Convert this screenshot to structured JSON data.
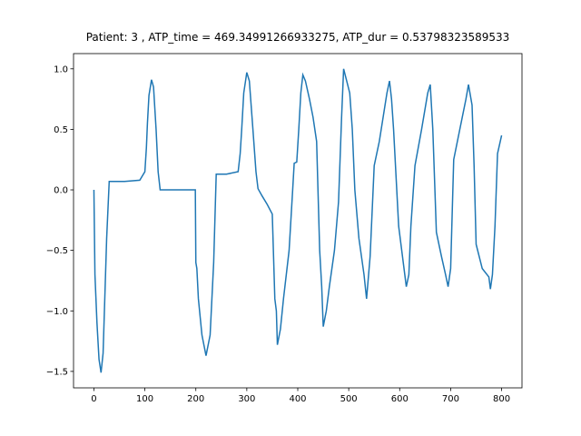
{
  "chart_data": {
    "type": "line",
    "title": "Patient: 3 , ATP_time = 469.34991266933275, ATP_dur = 0.53798323589533",
    "xlim": [
      -40,
      840
    ],
    "ylim": [
      -1.636,
      1.126
    ],
    "xticks": [
      0,
      100,
      200,
      300,
      400,
      500,
      600,
      700,
      800
    ],
    "yticks": [
      {
        "value": -1.5,
        "label": "−1.5"
      },
      {
        "value": -1.0,
        "label": "−1.0"
      },
      {
        "value": -0.5,
        "label": "−0.5"
      },
      {
        "value": 0,
        "label": "0.0"
      },
      {
        "value": 0.5,
        "label": "0.5"
      },
      {
        "value": 1.0,
        "label": "1.0"
      }
    ],
    "grid": false,
    "series": [
      {
        "color": "#1f77b4",
        "x": [
          0,
          2,
          6,
          10,
          14,
          18,
          25,
          30,
          60,
          90,
          100,
          103,
          105,
          108,
          113,
          117,
          122,
          126,
          130,
          160,
          199,
          200,
          202,
          205,
          212,
          220,
          228,
          235,
          240,
          260,
          283,
          287,
          290,
          294,
          300,
          305,
          312,
          318,
          322,
          330,
          340,
          350,
          355,
          358,
          360,
          366,
          372,
          383,
          390,
          393,
          398,
          402,
          406,
          410,
          415,
          423,
          430,
          437,
          443,
          447,
          450,
          456,
          462,
          472,
          480,
          486,
          490,
          496,
          502,
          507,
          512,
          520,
          530,
          535,
          538,
          542,
          550,
          560,
          575,
          580,
          584,
          588,
          598,
          607,
          613,
          618,
          622,
          630,
          643,
          655,
          660,
          665,
          672,
          682,
          690,
          695,
          700,
          706,
          718,
          730,
          735,
          742,
          746,
          750,
          762,
          775,
          778,
          782,
          787,
          792,
          800
        ],
        "values": [
          0,
          -0.7,
          -1.1,
          -1.4,
          -1.51,
          -1.35,
          -0.4,
          0.07,
          0.07,
          0.08,
          0.15,
          0.35,
          0.55,
          0.78,
          0.91,
          0.85,
          0.5,
          0.15,
          0.0,
          0.0,
          0.0,
          -0.6,
          -0.65,
          -0.9,
          -1.2,
          -1.37,
          -1.2,
          -0.6,
          0.13,
          0.13,
          0.15,
          0.3,
          0.5,
          0.8,
          0.97,
          0.9,
          0.5,
          0.15,
          0.01,
          -0.05,
          -0.12,
          -0.2,
          -0.9,
          -1.0,
          -1.28,
          -1.15,
          -0.9,
          -0.5,
          0.0,
          0.22,
          0.23,
          0.5,
          0.8,
          0.95,
          0.9,
          0.75,
          0.6,
          0.4,
          -0.5,
          -0.8,
          -1.13,
          -1.0,
          -0.8,
          -0.5,
          -0.1,
          0.6,
          1.0,
          0.9,
          0.8,
          0.5,
          0.0,
          -0.4,
          -0.7,
          -0.9,
          -0.75,
          -0.55,
          0.2,
          0.4,
          0.8,
          0.9,
          0.75,
          0.5,
          -0.3,
          -0.6,
          -0.8,
          -0.7,
          -0.3,
          0.2,
          0.5,
          0.8,
          0.87,
          0.5,
          -0.35,
          -0.55,
          -0.7,
          -0.8,
          -0.65,
          0.25,
          0.5,
          0.75,
          0.87,
          0.7,
          0.2,
          -0.45,
          -0.65,
          -0.72,
          -0.82,
          -0.7,
          -0.3,
          0.3,
          0.45
        ]
      }
    ]
  }
}
